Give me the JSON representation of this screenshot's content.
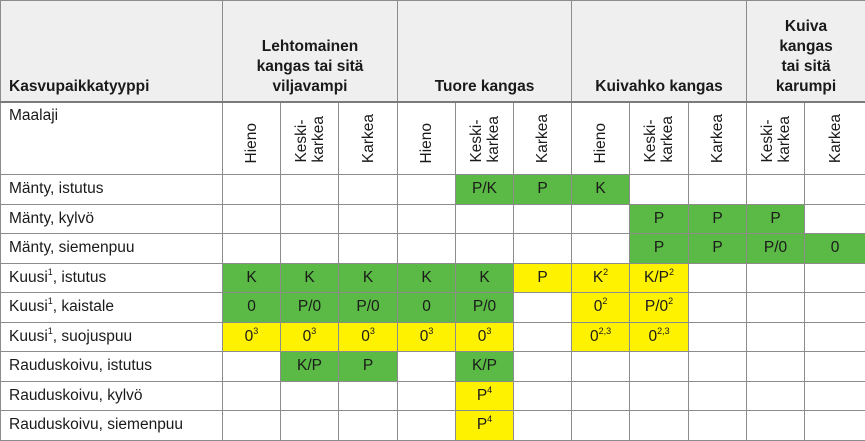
{
  "header": {
    "title": "Kasvupaikkatyyppi",
    "groups": [
      {
        "label": "Lehtomainen\nkangas tai sitä\nviljavampi"
      },
      {
        "label": "Tuore kangas"
      },
      {
        "label": "Kuivahko kangas"
      },
      {
        "label": "Kuiva\nkangas\ntai sitä\nkarumpi"
      }
    ]
  },
  "subheader": {
    "label": "Maalaji",
    "soils": [
      "Hieno",
      "Keski-\nkarkea",
      "Karkea",
      "Hieno",
      "Keski-\nkarkea",
      "Karkea",
      "Hieno",
      "Keski-\nkarkea",
      "Karkea",
      "Keski-\nkarkea",
      "Karkea"
    ]
  },
  "colors": {
    "green": "#5bb946",
    "yellow": "#fff200"
  },
  "rows": [
    {
      "label": "Mänty, istutus",
      "sup": "",
      "suffix": "",
      "cells": [
        {
          "t": "",
          "c": ""
        },
        {
          "t": "",
          "c": ""
        },
        {
          "t": "",
          "c": ""
        },
        {
          "t": "",
          "c": ""
        },
        {
          "t": "P/K",
          "c": "g"
        },
        {
          "t": "P",
          "c": "g"
        },
        {
          "t": "K",
          "c": "g"
        },
        {
          "t": "",
          "c": ""
        },
        {
          "t": "",
          "c": ""
        },
        {
          "t": "",
          "c": ""
        },
        {
          "t": "",
          "c": ""
        }
      ]
    },
    {
      "label": "Mänty, kylvö",
      "sup": "",
      "suffix": "",
      "cells": [
        {
          "t": "",
          "c": ""
        },
        {
          "t": "",
          "c": ""
        },
        {
          "t": "",
          "c": ""
        },
        {
          "t": "",
          "c": ""
        },
        {
          "t": "",
          "c": ""
        },
        {
          "t": "",
          "c": ""
        },
        {
          "t": "",
          "c": ""
        },
        {
          "t": "P",
          "c": "g"
        },
        {
          "t": "P",
          "c": "g"
        },
        {
          "t": "P",
          "c": "g"
        },
        {
          "t": "",
          "c": ""
        }
      ]
    },
    {
      "label": "Mänty, siemenpuu",
      "sup": "",
      "suffix": "",
      "cells": [
        {
          "t": "",
          "c": ""
        },
        {
          "t": "",
          "c": ""
        },
        {
          "t": "",
          "c": ""
        },
        {
          "t": "",
          "c": ""
        },
        {
          "t": "",
          "c": ""
        },
        {
          "t": "",
          "c": ""
        },
        {
          "t": "",
          "c": ""
        },
        {
          "t": "P",
          "c": "g"
        },
        {
          "t": "P",
          "c": "g"
        },
        {
          "t": "P/0",
          "c": "g"
        },
        {
          "t": "0",
          "c": "g"
        }
      ]
    },
    {
      "label": "Kuusi",
      "sup": "1",
      "suffix": ", istutus",
      "cells": [
        {
          "t": "K",
          "c": "g"
        },
        {
          "t": "K",
          "c": "g"
        },
        {
          "t": "K",
          "c": "g"
        },
        {
          "t": "K",
          "c": "g"
        },
        {
          "t": "K",
          "c": "g"
        },
        {
          "t": "P",
          "c": "y"
        },
        {
          "t": "K",
          "s": "2",
          "c": "y"
        },
        {
          "t": "K/P",
          "s": "2",
          "c": "y"
        },
        {
          "t": "",
          "c": ""
        },
        {
          "t": "",
          "c": ""
        },
        {
          "t": "",
          "c": ""
        }
      ]
    },
    {
      "label": "Kuusi",
      "sup": "1",
      "suffix": ", kaistale",
      "cells": [
        {
          "t": "0",
          "c": "g"
        },
        {
          "t": "P/0",
          "c": "g"
        },
        {
          "t": "P/0",
          "c": "g"
        },
        {
          "t": "0",
          "c": "g"
        },
        {
          "t": "P/0",
          "c": "g"
        },
        {
          "t": "",
          "c": ""
        },
        {
          "t": "0",
          "s": "2",
          "c": "y"
        },
        {
          "t": "P/0",
          "s": "2",
          "c": "y"
        },
        {
          "t": "",
          "c": ""
        },
        {
          "t": "",
          "c": ""
        },
        {
          "t": "",
          "c": ""
        }
      ]
    },
    {
      "label": "Kuusi",
      "sup": "1",
      "suffix": ", suojuspuu",
      "cells": [
        {
          "t": "0",
          "s": "3",
          "c": "y"
        },
        {
          "t": "0",
          "s": "3",
          "c": "y"
        },
        {
          "t": "0",
          "s": "3",
          "c": "y"
        },
        {
          "t": "0",
          "s": "3",
          "c": "y"
        },
        {
          "t": "0",
          "s": "3",
          "c": "y"
        },
        {
          "t": "",
          "c": ""
        },
        {
          "t": "0",
          "s": "2,3",
          "c": "y"
        },
        {
          "t": "0",
          "s": "2,3",
          "c": "y"
        },
        {
          "t": "",
          "c": ""
        },
        {
          "t": "",
          "c": ""
        },
        {
          "t": "",
          "c": ""
        }
      ]
    },
    {
      "label": "Rauduskoivu, istutus",
      "sup": "",
      "suffix": "",
      "cells": [
        {
          "t": "",
          "c": ""
        },
        {
          "t": "K/P",
          "c": "g"
        },
        {
          "t": "P",
          "c": "g"
        },
        {
          "t": "",
          "c": ""
        },
        {
          "t": "K/P",
          "c": "g"
        },
        {
          "t": "",
          "c": ""
        },
        {
          "t": "",
          "c": ""
        },
        {
          "t": "",
          "c": ""
        },
        {
          "t": "",
          "c": ""
        },
        {
          "t": "",
          "c": ""
        },
        {
          "t": "",
          "c": ""
        }
      ]
    },
    {
      "label": "Rauduskoivu, kylvö",
      "sup": "",
      "suffix": "",
      "cells": [
        {
          "t": "",
          "c": ""
        },
        {
          "t": "",
          "c": ""
        },
        {
          "t": "",
          "c": ""
        },
        {
          "t": "",
          "c": ""
        },
        {
          "t": "P",
          "s": "4",
          "c": "y"
        },
        {
          "t": "",
          "c": ""
        },
        {
          "t": "",
          "c": ""
        },
        {
          "t": "",
          "c": ""
        },
        {
          "t": "",
          "c": ""
        },
        {
          "t": "",
          "c": ""
        },
        {
          "t": "",
          "c": ""
        }
      ]
    },
    {
      "label": "Rauduskoivu, siemenpuu",
      "sup": "",
      "suffix": "",
      "cells": [
        {
          "t": "",
          "c": ""
        },
        {
          "t": "",
          "c": ""
        },
        {
          "t": "",
          "c": ""
        },
        {
          "t": "",
          "c": ""
        },
        {
          "t": "P",
          "s": "4",
          "c": "y"
        },
        {
          "t": "",
          "c": ""
        },
        {
          "t": "",
          "c": ""
        },
        {
          "t": "",
          "c": ""
        },
        {
          "t": "",
          "c": ""
        },
        {
          "t": "",
          "c": ""
        },
        {
          "t": "",
          "c": ""
        }
      ]
    }
  ]
}
